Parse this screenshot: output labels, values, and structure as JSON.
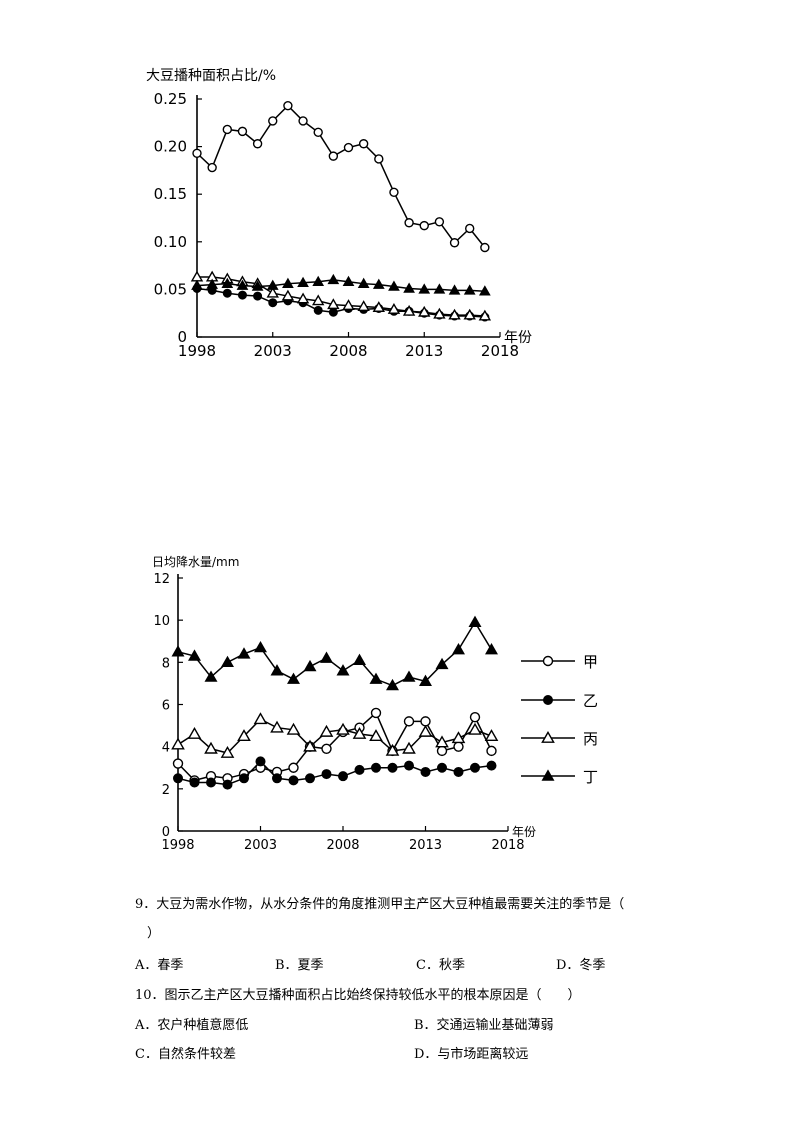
{
  "chart_data": [
    {
      "type": "line",
      "ylabel": "大豆播种面积占比/%",
      "xlabel": "年份",
      "ylim": [
        0,
        0.25
      ],
      "yticks": [
        "0.25",
        "0.20",
        "0.15",
        "0.10",
        "0.05",
        "0"
      ],
      "xticks": [
        "1998",
        "2003",
        "2008",
        "2013",
        "2018"
      ],
      "x": [
        1998,
        1999,
        2000,
        2001,
        2002,
        2003,
        2004,
        2005,
        2006,
        2007,
        2008,
        2009,
        2010,
        2011,
        2012,
        2013,
        2014,
        2015,
        2016,
        2017
      ],
      "series": [
        {
          "marker": "open-circle",
          "values": [
            0.193,
            0.178,
            0.218,
            0.216,
            0.203,
            0.227,
            0.243,
            0.227,
            0.215,
            0.19,
            0.199,
            0.203,
            0.187,
            0.152,
            0.12,
            0.117,
            0.121,
            0.099,
            0.114,
            0.094
          ]
        },
        {
          "marker": "filled-circle",
          "values": [
            0.051,
            0.049,
            0.046,
            0.044,
            0.043,
            0.036,
            0.038,
            0.036,
            0.028,
            0.026,
            0.03,
            0.029,
            0.03,
            0.027,
            0.027,
            0.025,
            0.023,
            0.022,
            0.022,
            0.021
          ]
        },
        {
          "marker": "open-triangle",
          "values": [
            0.063,
            0.063,
            0.061,
            0.058,
            0.056,
            0.046,
            0.043,
            0.04,
            0.038,
            0.034,
            0.033,
            0.032,
            0.031,
            0.029,
            0.027,
            0.026,
            0.024,
            0.023,
            0.023,
            0.022
          ]
        },
        {
          "marker": "filled-triangle",
          "values": [
            0.054,
            0.055,
            0.056,
            0.054,
            0.053,
            0.054,
            0.056,
            0.057,
            0.058,
            0.06,
            0.058,
            0.056,
            0.055,
            0.053,
            0.051,
            0.05,
            0.05,
            0.049,
            0.049,
            0.048
          ]
        }
      ]
    },
    {
      "type": "line",
      "ylabel": "日均降水量/mm",
      "xlabel": "年份",
      "ylim": [
        0,
        12
      ],
      "yticks": [
        "12",
        "10",
        "8",
        "6",
        "4",
        "2",
        "0"
      ],
      "xticks": [
        "1998",
        "2003",
        "2008",
        "2013",
        "2018"
      ],
      "x": [
        1998,
        1999,
        2000,
        2001,
        2002,
        2003,
        2004,
        2005,
        2006,
        2007,
        2008,
        2009,
        2010,
        2011,
        2012,
        2013,
        2014,
        2015,
        2016,
        2017
      ],
      "series": [
        {
          "name": "甲",
          "marker": "open-circle",
          "values": [
            3.2,
            2.4,
            2.6,
            2.5,
            2.7,
            3.0,
            2.8,
            3.0,
            4.0,
            3.9,
            4.7,
            4.9,
            5.6,
            3.8,
            5.2,
            5.2,
            3.8,
            4.0,
            5.4,
            3.8
          ]
        },
        {
          "name": "乙",
          "marker": "filled-circle",
          "values": [
            2.5,
            2.3,
            2.3,
            2.2,
            2.5,
            3.3,
            2.5,
            2.4,
            2.5,
            2.7,
            2.6,
            2.9,
            3.0,
            3.0,
            3.1,
            2.8,
            3.0,
            2.8,
            3.0,
            3.1
          ]
        },
        {
          "name": "丙",
          "marker": "open-triangle",
          "values": [
            4.1,
            4.6,
            3.9,
            3.7,
            4.5,
            5.3,
            4.9,
            4.8,
            4.0,
            4.7,
            4.8,
            4.6,
            4.5,
            3.8,
            3.9,
            4.7,
            4.2,
            4.4,
            4.8,
            4.5
          ]
        },
        {
          "name": "丁",
          "marker": "filled-triangle",
          "values": [
            8.5,
            8.3,
            7.3,
            8.0,
            8.4,
            8.7,
            7.6,
            7.2,
            7.8,
            8.2,
            7.6,
            8.1,
            7.2,
            6.9,
            7.3,
            7.1,
            7.9,
            8.6,
            9.9,
            8.6
          ]
        }
      ]
    }
  ],
  "questions": [
    {
      "stem_line1": "9．大豆为需水作物，从水分条件的角度推测甲主产区大豆种植最需要关注的季节是（",
      "stem_line2": "）",
      "options": [
        "A．春季",
        "B．夏季",
        "C．秋季",
        "D．冬季"
      ]
    },
    {
      "stem_line1": "10．图示乙主产区大豆播种面积占比始终保持较低水平的根本原因是（　　）",
      "options": [
        "A．农户种植意愿低",
        "B．交通运输业基础薄弱",
        "C．自然条件较差",
        "D．与市场距离较远"
      ]
    }
  ]
}
